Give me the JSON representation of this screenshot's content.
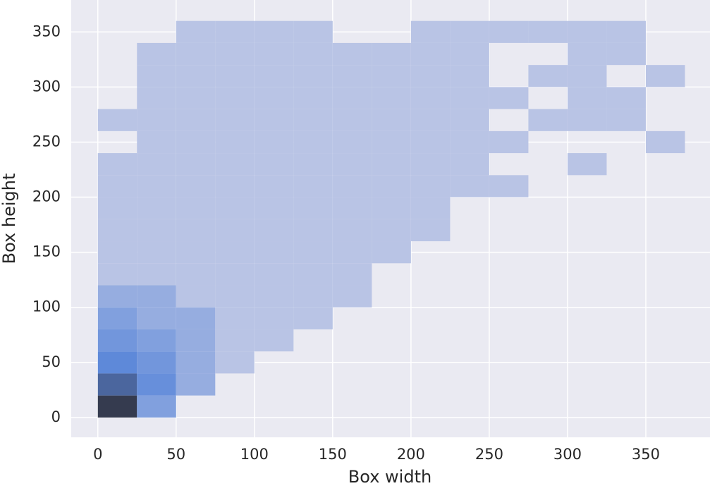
{
  "chart_data": {
    "type": "hist2d",
    "x_label": "Box width",
    "y_label": "Box height",
    "xbins": [
      0,
      25,
      50,
      75,
      100,
      125,
      150,
      175,
      200,
      225,
      250,
      275,
      300,
      325,
      350,
      375
    ],
    "ybins": [
      0,
      20,
      40,
      60,
      80,
      100,
      120,
      140,
      160,
      180,
      200,
      220,
      240,
      260,
      280,
      300,
      320,
      340,
      360
    ],
    "counts": [
      [
        40,
        3,
        0,
        0,
        0,
        0,
        0,
        0,
        0,
        0,
        0,
        0,
        0,
        0,
        0
      ],
      [
        14,
        5,
        2,
        0,
        0,
        0,
        0,
        0,
        0,
        0,
        0,
        0,
        0,
        0,
        0
      ],
      [
        6,
        4,
        2,
        1,
        0,
        0,
        0,
        0,
        0,
        0,
        0,
        0,
        0,
        0,
        0
      ],
      [
        4,
        3,
        2,
        1,
        1,
        0,
        0,
        0,
        0,
        0,
        0,
        0,
        0,
        0,
        0
      ],
      [
        3,
        2,
        2,
        1,
        1,
        1,
        0,
        0,
        0,
        0,
        0,
        0,
        0,
        0,
        0
      ],
      [
        2,
        2,
        1,
        1,
        1,
        1,
        1,
        0,
        0,
        0,
        0,
        0,
        0,
        0,
        0
      ],
      [
        1,
        1,
        1,
        1,
        1,
        1,
        1,
        0,
        0,
        0,
        0,
        0,
        0,
        0,
        0
      ],
      [
        1,
        1,
        1,
        1,
        1,
        1,
        1,
        1,
        0,
        0,
        0,
        0,
        0,
        0,
        0
      ],
      [
        1,
        1,
        1,
        1,
        1,
        1,
        1,
        1,
        1,
        0,
        0,
        0,
        0,
        0,
        0
      ],
      [
        1,
        1,
        1,
        1,
        1,
        1,
        1,
        1,
        1,
        0,
        0,
        0,
        0,
        0,
        0
      ],
      [
        1,
        1,
        1,
        1,
        1,
        1,
        1,
        1,
        1,
        1,
        1,
        0,
        0,
        0,
        0
      ],
      [
        1,
        1,
        1,
        1,
        1,
        1,
        1,
        1,
        1,
        1,
        0,
        0,
        1,
        0,
        0
      ],
      [
        0,
        1,
        1,
        1,
        1,
        1,
        1,
        1,
        1,
        1,
        1,
        0,
        0,
        0,
        1
      ],
      [
        1,
        1,
        1,
        1,
        1,
        1,
        1,
        1,
        1,
        1,
        0,
        1,
        1,
        1,
        0
      ],
      [
        0,
        1,
        1,
        1,
        1,
        1,
        1,
        1,
        1,
        1,
        1,
        0,
        1,
        1,
        0
      ],
      [
        0,
        1,
        1,
        1,
        1,
        1,
        1,
        1,
        1,
        1,
        0,
        1,
        1,
        0,
        1
      ],
      [
        0,
        1,
        1,
        1,
        1,
        1,
        1,
        1,
        1,
        1,
        0,
        0,
        1,
        1,
        0
      ],
      [
        0,
        0,
        1,
        1,
        1,
        1,
        0,
        0,
        1,
        1,
        1,
        1,
        1,
        1,
        0
      ]
    ],
    "cmap": [
      "#b9c4e5",
      "#5b87d9",
      "#353b4f"
    ],
    "xlim": [
      -17,
      391
    ],
    "ylim": [
      -18,
      379
    ],
    "xticks": [
      0,
      50,
      100,
      150,
      200,
      250,
      300,
      350
    ],
    "yticks": [
      0,
      50,
      100,
      150,
      200,
      250,
      300,
      350
    ],
    "grid": true
  }
}
